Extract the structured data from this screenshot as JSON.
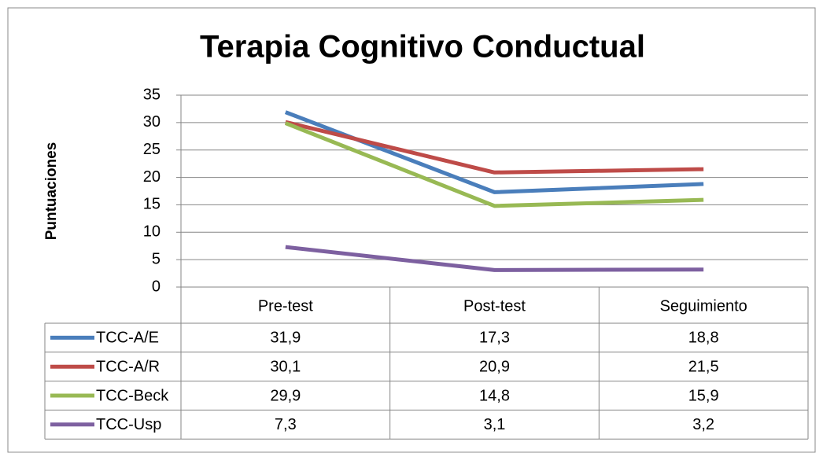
{
  "chart_data": {
    "type": "line",
    "title": "Terapia Cognitivo Conductual",
    "y_label": "Puntuaciones",
    "categories": [
      "Pre-test",
      "Post-test",
      "Seguimiento"
    ],
    "series": [
      {
        "name": "TCC-A/E",
        "color": "#4a7ebb",
        "values": [
          31.9,
          17.3,
          18.8
        ],
        "value_labels": [
          "31,9",
          "17,3",
          "18,8"
        ]
      },
      {
        "name": "TCC-A/R",
        "color": "#be4b48",
        "values": [
          30.1,
          20.9,
          21.5
        ],
        "value_labels": [
          "30,1",
          "20,9",
          "21,5"
        ]
      },
      {
        "name": "TCC-Beck",
        "color": "#98b954",
        "values": [
          29.9,
          14.8,
          15.9
        ],
        "value_labels": [
          "29,9",
          "14,8",
          "15,9"
        ]
      },
      {
        "name": "TCC-Usp",
        "color": "#7d60a0",
        "values": [
          7.3,
          3.1,
          3.2
        ],
        "value_labels": [
          "7,3",
          "3,1",
          "3,2"
        ]
      }
    ],
    "ylim": [
      0,
      35
    ],
    "yticks": [
      0,
      5,
      10,
      15,
      20,
      25,
      30,
      35
    ],
    "grid": true,
    "data_table": true
  }
}
